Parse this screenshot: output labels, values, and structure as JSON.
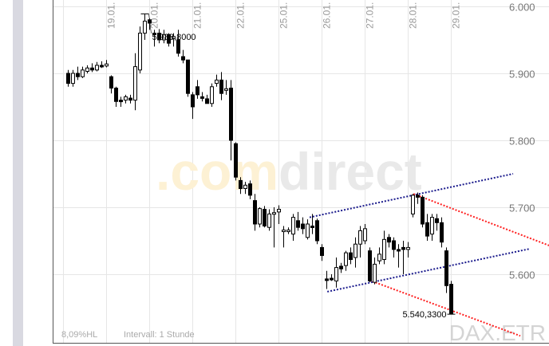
{
  "chart_data": {
    "type": "candlestick",
    "instrument": "DAX.ETR",
    "watermark": {
      "part1": ".com",
      "part2": "direct"
    },
    "interval_label": "Intervall: 1 Stunde",
    "range_label": "8,09%HL",
    "ylim": [
      5530,
      6010
    ],
    "y_ticks": [
      {
        "v": 6000,
        "label": "6.000"
      },
      {
        "v": 5900,
        "label": "5.900"
      },
      {
        "v": 5800,
        "label": "5.800"
      },
      {
        "v": 5700,
        "label": "5.700"
      },
      {
        "v": 5600,
        "label": "5.600"
      }
    ],
    "date_ticks": [
      {
        "i": 9,
        "label": "19.01."
      },
      {
        "i": 18,
        "label": "20.01."
      },
      {
        "i": 27,
        "label": "21.01."
      },
      {
        "i": 36,
        "label": "22.01."
      },
      {
        "i": 45,
        "label": "25.01."
      },
      {
        "i": 54,
        "label": "26.01."
      },
      {
        "i": 63,
        "label": "27.01."
      },
      {
        "i": 72,
        "label": "28.01."
      },
      {
        "i": 81,
        "label": "29.01."
      }
    ],
    "high_marker": {
      "i": 16,
      "value": 5988.8,
      "label": "5.988,8000"
    },
    "low_marker": {
      "i": 80,
      "value": 5540.33,
      "label": "5.540,3300"
    },
    "grid": true,
    "colors": {
      "candle": "#000000",
      "trend_blue": "#1a1a8c",
      "trend_red": "#ff2020",
      "grid": "#e6e6e6"
    },
    "candles_ohlc": [
      [
        5900,
        5905,
        5880,
        5885
      ],
      [
        5885,
        5905,
        5880,
        5900
      ],
      [
        5900,
        5910,
        5890,
        5895
      ],
      [
        5895,
        5910,
        5893,
        5905
      ],
      [
        5903,
        5912,
        5900,
        5908
      ],
      [
        5908,
        5915,
        5902,
        5905
      ],
      [
        5905,
        5917,
        5903,
        5912
      ],
      [
        5912,
        5918,
        5908,
        5910
      ],
      [
        5911,
        5920,
        5909,
        5914
      ],
      [
        5895,
        5897,
        5870,
        5878
      ],
      [
        5878,
        5880,
        5850,
        5858
      ],
      [
        5860,
        5865,
        5850,
        5858
      ],
      [
        5860,
        5868,
        5855,
        5865
      ],
      [
        5863,
        5868,
        5855,
        5860
      ],
      [
        5860,
        5930,
        5845,
        5910
      ],
      [
        5905,
        5970,
        5900,
        5960
      ],
      [
        5960,
        5989,
        5950,
        5978
      ],
      [
        5980,
        5982,
        5965,
        5975
      ],
      [
        5960,
        5965,
        5940,
        5958
      ],
      [
        5960,
        5966,
        5945,
        5950
      ],
      [
        5950,
        5965,
        5945,
        5958
      ],
      [
        5958,
        5960,
        5940,
        5945
      ],
      [
        5952,
        5960,
        5940,
        5955
      ],
      [
        5950,
        5965,
        5925,
        5930
      ],
      [
        5925,
        5935,
        5915,
        5920
      ],
      [
        5920,
        5920,
        5865,
        5870
      ],
      [
        5868,
        5872,
        5832,
        5850
      ],
      [
        5880,
        5890,
        5862,
        5868
      ],
      [
        5865,
        5872,
        5858,
        5863
      ],
      [
        5862,
        5868,
        5855,
        5855
      ],
      [
        5855,
        5885,
        5850,
        5880
      ],
      [
        5885,
        5898,
        5880,
        5890
      ],
      [
        5890,
        5902,
        5860,
        5870
      ],
      [
        5875,
        5890,
        5868,
        5877
      ],
      [
        5878,
        5890,
        5770,
        5800
      ],
      [
        5795,
        5797,
        5740,
        5745
      ],
      [
        5740,
        5745,
        5720,
        5728
      ],
      [
        5728,
        5738,
        5720,
        5733
      ],
      [
        5735,
        5740,
        5712,
        5718
      ],
      [
        5710,
        5720,
        5665,
        5675
      ],
      [
        5675,
        5700,
        5670,
        5698
      ],
      [
        5697,
        5702,
        5670,
        5672
      ],
      [
        5670,
        5697,
        5665,
        5690
      ],
      [
        5690,
        5700,
        5640,
        5692
      ],
      [
        5693,
        5703,
        5675,
        5697
      ],
      [
        5665,
        5672,
        5640,
        5666
      ],
      [
        5665,
        5670,
        5660,
        5666
      ],
      [
        5660,
        5690,
        5650,
        5685
      ],
      [
        5680,
        5693,
        5665,
        5670
      ],
      [
        5675,
        5685,
        5660,
        5668
      ],
      [
        5655,
        5682,
        5652,
        5675
      ],
      [
        5672,
        5690,
        5660,
        5670
      ],
      [
        5680,
        5683,
        5645,
        5650
      ],
      [
        5640,
        5645,
        5620,
        5628
      ],
      [
        5593,
        5605,
        5578,
        5592
      ],
      [
        5594,
        5600,
        5590,
        5593
      ],
      [
        5590,
        5625,
        5580,
        5610
      ],
      [
        5612,
        5617,
        5602,
        5608
      ],
      [
        5613,
        5635,
        5605,
        5632
      ],
      [
        5632,
        5640,
        5615,
        5622
      ],
      [
        5625,
        5655,
        5610,
        5645
      ],
      [
        5645,
        5672,
        5625,
        5665
      ],
      [
        5650,
        5675,
        5645,
        5668
      ],
      [
        5635,
        5640,
        5588,
        5590
      ],
      [
        5588,
        5625,
        5585,
        5615
      ],
      [
        5620,
        5640,
        5615,
        5630
      ],
      [
        5622,
        5665,
        5615,
        5652
      ],
      [
        5655,
        5660,
        5640,
        5648
      ],
      [
        5650,
        5655,
        5625,
        5637
      ],
      [
        5637,
        5645,
        5610,
        5636
      ],
      [
        5640,
        5650,
        5600,
        5637
      ],
      [
        5637,
        5648,
        5625,
        5640
      ],
      [
        5690,
        5720,
        5685,
        5718
      ],
      [
        5718,
        5722,
        5705,
        5715
      ],
      [
        5715,
        5718,
        5670,
        5675
      ],
      [
        5677,
        5690,
        5650,
        5657
      ],
      [
        5660,
        5690,
        5650,
        5685
      ],
      [
        5683,
        5690,
        5665,
        5677
      ],
      [
        5677,
        5685,
        5640,
        5648
      ],
      [
        5635,
        5640,
        5572,
        5583
      ],
      [
        5585,
        5590,
        5540,
        5541
      ]
    ],
    "trend_lines": [
      {
        "color": "blue",
        "from": [
          50.5,
          5685
        ],
        "to": [
          93,
          5750
        ]
      },
      {
        "color": "blue",
        "from": [
          54.2,
          5574
        ],
        "to": [
          96.5,
          5638
        ]
      },
      {
        "color": "red",
        "from": [
          72.2,
          5720
        ],
        "to": [
          100.5,
          5643
        ]
      },
      {
        "color": "red",
        "from": [
          63,
          5591
        ],
        "to": [
          94.5,
          5508
        ]
      }
    ]
  }
}
